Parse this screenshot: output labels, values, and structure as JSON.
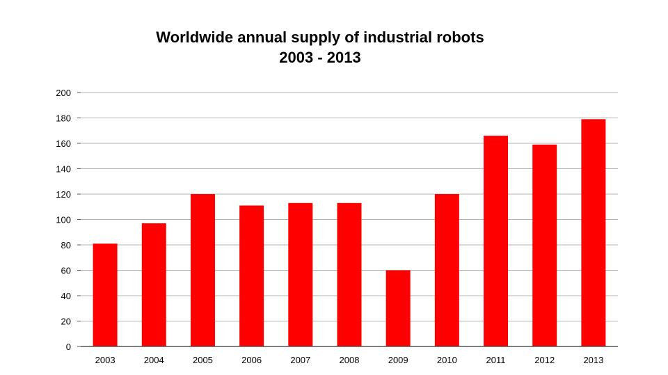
{
  "chart_data": {
    "type": "bar",
    "title": "Worldwide annual supply of industrial robots",
    "subtitle": "2003 - 2013",
    "xlabel": "",
    "ylabel": "",
    "categories": [
      "2003",
      "2004",
      "2005",
      "2006",
      "2007",
      "2008",
      "2009",
      "2010",
      "2011",
      "2012",
      "2013"
    ],
    "values": [
      81,
      97,
      120,
      111,
      113,
      113,
      60,
      120,
      166,
      159,
      179
    ],
    "ylim": [
      0,
      200
    ],
    "yticks": [
      "0",
      "20",
      "40",
      "60",
      "80",
      "100",
      "120",
      "140",
      "160",
      "180",
      "200"
    ],
    "ytick_values": [
      0,
      20,
      40,
      60,
      80,
      100,
      120,
      140,
      160,
      180,
      200
    ],
    "grid": true,
    "legend": "none",
    "bar_color": "#ff0000",
    "grid_color": "#b3b3b3",
    "axis_color": "#555555"
  }
}
